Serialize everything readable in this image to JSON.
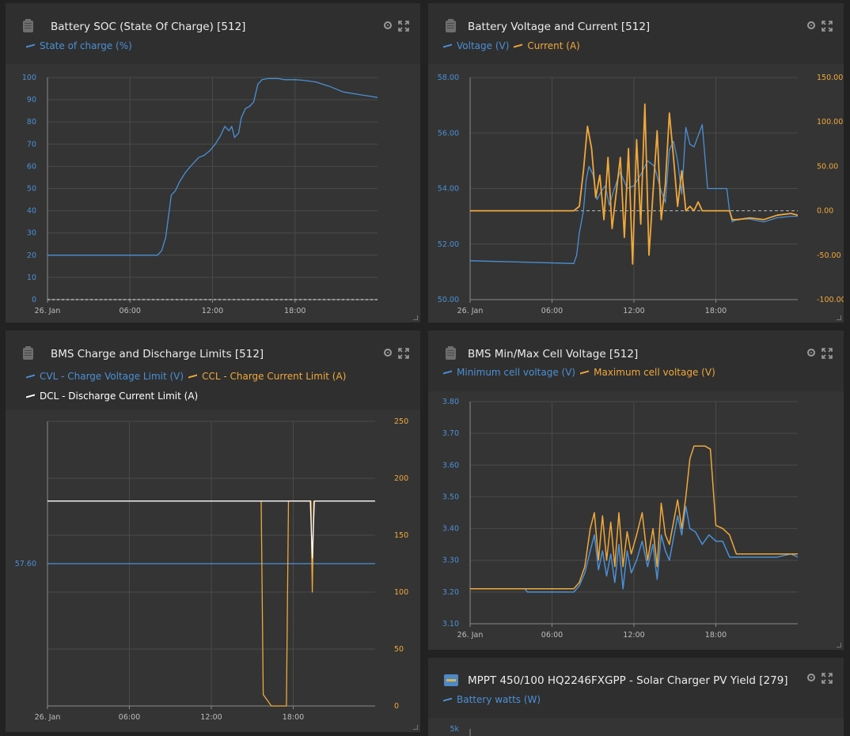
{
  "colors": {
    "blue": "#4a90d6",
    "orange": "#f0a83a",
    "white": "#ffffff",
    "grid": "#4a4a4a",
    "axis_label": "#bdbdbd",
    "background": "#222222",
    "panel": "#2f2f2f",
    "plot": "#343434"
  },
  "panels": [
    {
      "title": "Battery SOC (State Of Charge) [512]",
      "icon": "battery-icon",
      "legend": [
        {
          "label": "State of charge (%)",
          "color": "#4a90d6"
        }
      ]
    },
    {
      "title": "Battery Voltage and Current [512]",
      "icon": "battery-icon",
      "legend": [
        {
          "label": "Voltage (V)",
          "color": "#4a90d6"
        },
        {
          "label": "Current (A)",
          "color": "#f0a83a"
        }
      ]
    },
    {
      "title": "BMS Charge and Discharge Limits [512]",
      "icon": "battery-icon",
      "legend": [
        {
          "label": "CVL - Charge Voltage Limit (V)",
          "color": "#4a90d6"
        },
        {
          "label": "CCL - Charge Current Limit (A)",
          "color": "#f0a83a"
        },
        {
          "label": "DCL - Discharge Current Limit (A)",
          "color": "#ffffff"
        }
      ]
    },
    {
      "title": "BMS Min/Max Cell Voltage [512]",
      "icon": "battery-icon",
      "legend": [
        {
          "label": "Minimum cell voltage (V)",
          "color": "#4a90d6"
        },
        {
          "label": "Maximum cell voltage (V)",
          "color": "#f0a83a"
        }
      ]
    },
    {
      "title": "MPPT 450/100 HQ2246FXGPP - Solar Charger PV Yield [279]",
      "icon": "solar-charger-icon",
      "legend": [
        {
          "label": "Battery watts (W)",
          "color": "#4a90d6"
        }
      ]
    }
  ],
  "chart_data": [
    {
      "type": "line",
      "title": "Battery SOC (State Of Charge) [512]",
      "x_ticks": [
        "26. Jan",
        "06:00",
        "12:00",
        "18:00"
      ],
      "x_range_hours": [
        0,
        24
      ],
      "y_ticks": [
        "0",
        "10",
        "20",
        "30",
        "40",
        "50",
        "60",
        "70",
        "80",
        "90",
        "100"
      ],
      "ylim": [
        0,
        100
      ],
      "grid": true,
      "legend_position": "top-left",
      "series": [
        {
          "name": "State of charge (%)",
          "color": "#4a90d6",
          "axis": "left",
          "x": [
            0,
            8.0,
            8.3,
            8.6,
            9.0,
            9.3,
            9.6,
            10.0,
            10.4,
            10.7,
            11.0,
            11.4,
            11.8,
            12.2,
            12.6,
            12.9,
            13.2,
            13.4,
            13.6,
            13.9,
            14.1,
            14.4,
            14.7,
            15.0,
            15.3,
            15.6,
            16.0,
            16.4,
            16.8,
            17.2,
            17.6,
            18.0,
            18.5,
            19.5,
            20.5,
            21.5,
            22.5,
            23.5,
            24.0
          ],
          "y": [
            20,
            20,
            22,
            28,
            47,
            49,
            53,
            57,
            60,
            62,
            64,
            65,
            67,
            70,
            74,
            78,
            76,
            78,
            73,
            75,
            82,
            86,
            87,
            89,
            97,
            99,
            99.5,
            99.5,
            99.5,
            99,
            99,
            99,
            98.8,
            98,
            96,
            93.5,
            92.5,
            91.5,
            91
          ]
        }
      ]
    },
    {
      "type": "line",
      "title": "Battery Voltage and Current [512]",
      "x_ticks": [
        "26. Jan",
        "06:00",
        "12:00",
        "18:00"
      ],
      "x_range_hours": [
        0,
        24
      ],
      "y_ticks": [
        "50.00",
        "52.00",
        "54.00",
        "56.00",
        "58.00"
      ],
      "ylim": [
        50,
        58
      ],
      "y2_ticks": [
        "-100.00",
        "-50.00",
        "0.00",
        "50.00",
        "100.00",
        "150.00"
      ],
      "y2lim": [
        -100,
        150
      ],
      "grid": true,
      "legend_position": "top-left",
      "series": [
        {
          "name": "Voltage (V)",
          "color": "#4a90d6",
          "axis": "left",
          "x": [
            0,
            7.6,
            7.8,
            8.0,
            8.3,
            8.5,
            8.7,
            9.0,
            9.3,
            9.6,
            9.9,
            10.2,
            10.5,
            11.0,
            11.5,
            12.0,
            12.5,
            13.0,
            13.5,
            14.0,
            14.3,
            14.6,
            14.9,
            15.2,
            15.5,
            15.8,
            16.1,
            16.4,
            16.7,
            17.0,
            17.4,
            17.8,
            18.2,
            18.8,
            19.0,
            19.2,
            19.6,
            20.5,
            21.5,
            22.5,
            23.5,
            24.0
          ],
          "y": [
            51.4,
            51.3,
            51.6,
            52.4,
            53.2,
            54.3,
            54.8,
            54.5,
            53.6,
            53.9,
            54.1,
            53.4,
            53.9,
            54.6,
            54.0,
            54.1,
            54.5,
            55.0,
            54.8,
            53.9,
            53.5,
            55.4,
            55.7,
            55.0,
            53.8,
            56.2,
            55.6,
            55.5,
            55.9,
            56.3,
            54.0,
            54.0,
            54.0,
            54.0,
            53.2,
            52.8,
            52.9,
            52.9,
            52.8,
            52.95,
            53.0,
            53.0
          ]
        },
        {
          "name": "Current (A)",
          "color": "#f0a83a",
          "axis": "right",
          "x": [
            0,
            7.6,
            8.0,
            8.3,
            8.6,
            8.9,
            9.2,
            9.5,
            9.8,
            10.1,
            10.4,
            10.7,
            11.0,
            11.3,
            11.6,
            11.9,
            12.2,
            12.5,
            12.8,
            13.1,
            13.4,
            13.7,
            14.0,
            14.3,
            14.6,
            14.9,
            15.2,
            15.5,
            15.8,
            16.1,
            16.4,
            16.7,
            17.0,
            17.5,
            18.0,
            18.5,
            19.0,
            19.2,
            19.6,
            20.5,
            21.5,
            22.5,
            23.5,
            24.0
          ],
          "y": [
            0,
            0,
            5,
            45,
            95,
            70,
            15,
            40,
            -10,
            60,
            -20,
            20,
            60,
            -30,
            70,
            -60,
            80,
            -15,
            120,
            -50,
            20,
            90,
            -10,
            30,
            110,
            60,
            5,
            45,
            0,
            5,
            0,
            10,
            0,
            0,
            0,
            0,
            0,
            -10,
            -10,
            -8,
            -10,
            -5,
            -3,
            -5
          ]
        }
      ]
    },
    {
      "type": "line",
      "title": "BMS Charge and Discharge Limits [512]",
      "x_ticks": [
        "26. Jan",
        "06:00",
        "12:00",
        "18:00"
      ],
      "x_range_hours": [
        0,
        24
      ],
      "y_ticks": [
        "57.60"
      ],
      "ylim": [
        56.5,
        58.7
      ],
      "y2_ticks": [
        "0",
        "50",
        "100",
        "150",
        "200",
        "250"
      ],
      "y2lim": [
        0,
        250
      ],
      "grid": true,
      "legend_position": "top-left",
      "series": [
        {
          "name": "CVL - Charge Voltage Limit (V)",
          "color": "#4a90d6",
          "axis": "left",
          "x": [
            0,
            24
          ],
          "y": [
            57.6,
            57.6
          ]
        },
        {
          "name": "CCL - Charge Current Limit (A)",
          "color": "#f0a83a",
          "axis": "right",
          "x": [
            15.65,
            15.8,
            16.4,
            17.5,
            17.65,
            19.3,
            19.4,
            19.5
          ],
          "y": [
            180,
            10,
            0,
            0,
            180,
            180,
            100,
            180
          ]
        },
        {
          "name": "DCL - Discharge Current Limit (A)",
          "color": "#ffffff",
          "axis": "right",
          "x": [
            0,
            19.25,
            19.4,
            19.55,
            24
          ],
          "y": [
            180,
            180,
            130,
            180,
            180
          ]
        }
      ]
    },
    {
      "type": "line",
      "title": "BMS Min/Max Cell Voltage [512]",
      "x_ticks": [
        "26. Jan",
        "06:00",
        "12:00",
        "18:00"
      ],
      "x_range_hours": [
        0,
        24
      ],
      "y_ticks": [
        "3.10",
        "3.20",
        "3.30",
        "3.40",
        "3.50",
        "3.60",
        "3.70",
        "3.80"
      ],
      "ylim": [
        3.1,
        3.8
      ],
      "grid": true,
      "legend_position": "top-left",
      "series": [
        {
          "name": "Minimum cell voltage (V)",
          "color": "#4a90d6",
          "axis": "left",
          "x": [
            0,
            4.0,
            4.2,
            7.6,
            8.0,
            8.4,
            8.8,
            9.1,
            9.4,
            9.7,
            10.0,
            10.3,
            10.6,
            10.9,
            11.2,
            11.5,
            11.8,
            12.2,
            12.6,
            13.0,
            13.4,
            13.7,
            14.0,
            14.3,
            14.6,
            14.9,
            15.2,
            15.5,
            15.8,
            16.1,
            16.5,
            17.0,
            17.5,
            18.0,
            18.5,
            19.0,
            19.5,
            20.5,
            21.5,
            22.5,
            23.5,
            24.0
          ],
          "y": [
            3.21,
            3.21,
            3.2,
            3.2,
            3.22,
            3.26,
            3.33,
            3.38,
            3.27,
            3.33,
            3.25,
            3.32,
            3.23,
            3.35,
            3.21,
            3.33,
            3.26,
            3.3,
            3.36,
            3.28,
            3.35,
            3.24,
            3.38,
            3.33,
            3.3,
            3.37,
            3.44,
            3.38,
            3.47,
            3.4,
            3.39,
            3.35,
            3.38,
            3.36,
            3.36,
            3.31,
            3.31,
            3.31,
            3.31,
            3.31,
            3.32,
            3.31
          ]
        },
        {
          "name": "Maximum cell voltage (V)",
          "color": "#f0a83a",
          "axis": "left",
          "x": [
            0,
            7.6,
            8.0,
            8.4,
            8.8,
            9.1,
            9.4,
            9.7,
            10.0,
            10.3,
            10.6,
            10.9,
            11.2,
            11.5,
            11.8,
            12.2,
            12.6,
            13.0,
            13.4,
            13.7,
            14.0,
            14.3,
            14.6,
            14.9,
            15.2,
            15.5,
            15.8,
            16.1,
            16.4,
            16.8,
            17.2,
            17.6,
            18.0,
            18.5,
            19.0,
            19.5,
            20.5,
            21.5,
            22.5,
            23.5,
            24.0
          ],
          "y": [
            3.21,
            3.21,
            3.23,
            3.28,
            3.4,
            3.45,
            3.3,
            3.44,
            3.3,
            3.42,
            3.28,
            3.45,
            3.28,
            3.39,
            3.32,
            3.38,
            3.45,
            3.3,
            3.4,
            3.28,
            3.48,
            3.38,
            3.35,
            3.42,
            3.49,
            3.4,
            3.5,
            3.62,
            3.66,
            3.66,
            3.66,
            3.65,
            3.41,
            3.4,
            3.38,
            3.32,
            3.32,
            3.32,
            3.32,
            3.32,
            3.32
          ]
        }
      ]
    },
    {
      "type": "line",
      "title": "MPPT 450/100 HQ2246FXGPP - Solar Charger PV Yield [279]",
      "y_ticks": [
        "5k"
      ],
      "grid": true,
      "legend_position": "top-left",
      "series": [
        {
          "name": "Battery watts (W)",
          "color": "#4a90d6",
          "axis": "left"
        }
      ]
    }
  ]
}
